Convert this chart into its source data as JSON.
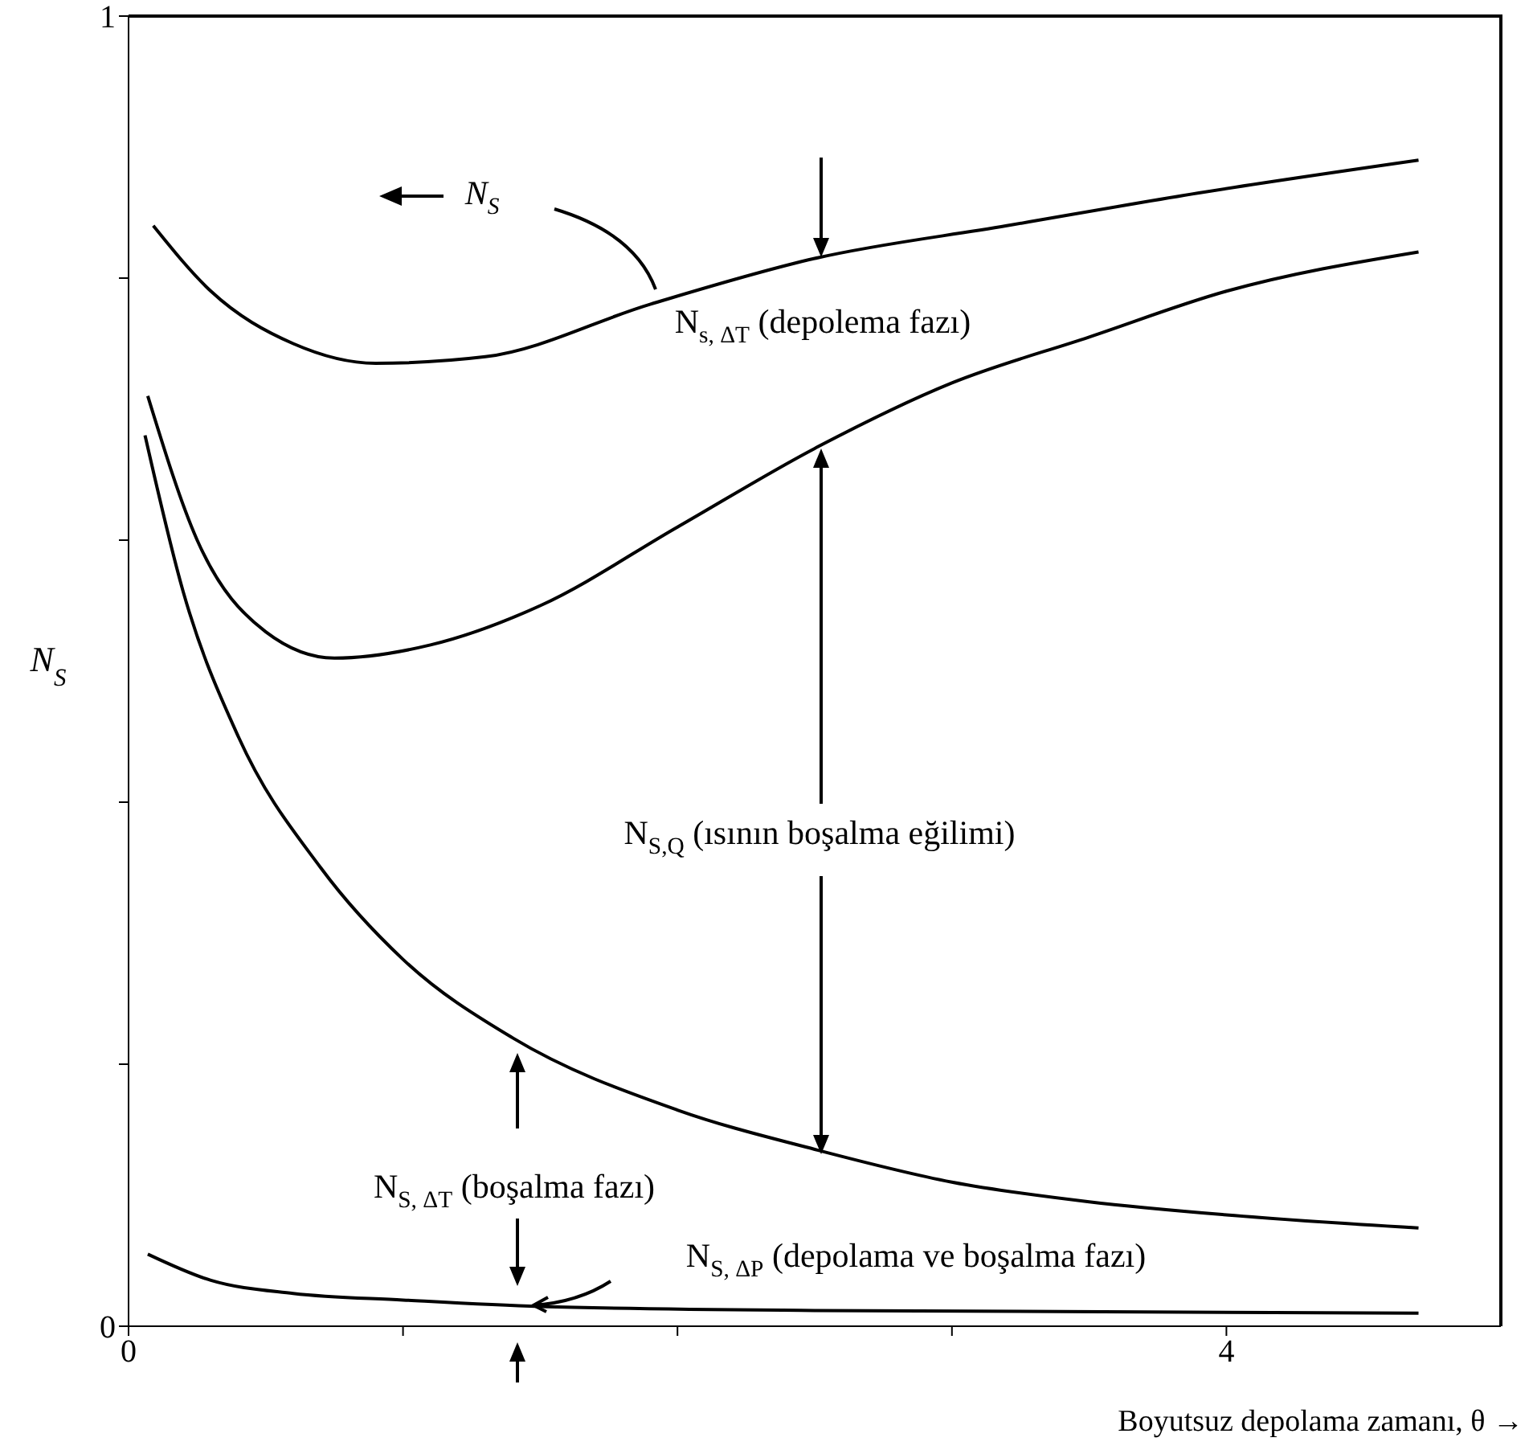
{
  "chart_data": {
    "type": "line",
    "xlabel": "Boyutsuz depolama zamanı, θ →",
    "ylabel": "N$_{S}$",
    "xlim": [
      0,
      5
    ],
    "xticks": [
      0,
      {
        "value": 1,
        "label": null
      },
      {
        "value": 2,
        "label": null
      },
      {
        "value": 3,
        "label": null
      },
      4
    ],
    "ylim": [
      0,
      1
    ],
    "yticks": [
      0,
      {
        "value": 0.2,
        "label": null
      },
      {
        "value": 0.4,
        "label": null
      },
      {
        "value": 0.6,
        "label": null
      },
      {
        "value": 0.8,
        "label": null
      },
      1
    ],
    "series": [
      {
        "color": "#000000",
        "x": [
          0.09,
          0.3,
          0.6,
          0.9,
          1.3,
          1.9,
          2.5,
          3.2,
          3.9,
          4.7
        ],
        "values": [
          0.84,
          0.79,
          0.75,
          0.735,
          0.74,
          0.78,
          0.815,
          0.84,
          0.865,
          0.89
        ]
      },
      {
        "color": "#000000",
        "x": [
          0.07,
          0.25,
          0.5,
          0.75,
          1.1,
          1.5,
          2.0,
          2.5,
          3.0,
          3.5,
          4.0,
          4.7
        ],
        "values": [
          0.71,
          0.6,
          0.53,
          0.51,
          0.52,
          0.55,
          0.61,
          0.67,
          0.72,
          0.755,
          0.79,
          0.82
        ]
      },
      {
        "color": "#000000",
        "x": [
          0.06,
          0.2,
          0.4,
          0.7,
          1.0,
          1.4,
          2.0,
          2.5,
          3.0,
          3.5,
          4.0,
          4.7
        ],
        "values": [
          0.68,
          0.56,
          0.45,
          0.35,
          0.28,
          0.22,
          0.165,
          0.135,
          0.11,
          0.095,
          0.085,
          0.075
        ]
      },
      {
        "color": "#000000",
        "x": [
          0.07,
          0.3,
          0.6,
          1.0,
          1.5,
          2.5,
          4.7
        ],
        "values": [
          0.055,
          0.035,
          0.025,
          0.02,
          0.015,
          0.012,
          0.01
        ]
      }
    ],
    "annotations": [
      "N$_{S}$",
      "N$_{s, ΔT}$ (depolema fazı)",
      "N$_{S,Q}$ (ısının boşalma eğilimi)",
      "N$_{S, ΔT}$ (boşalma fazı)",
      "N$_{S, ΔP}$ (depolama ve boşalma fazı)"
    ]
  }
}
